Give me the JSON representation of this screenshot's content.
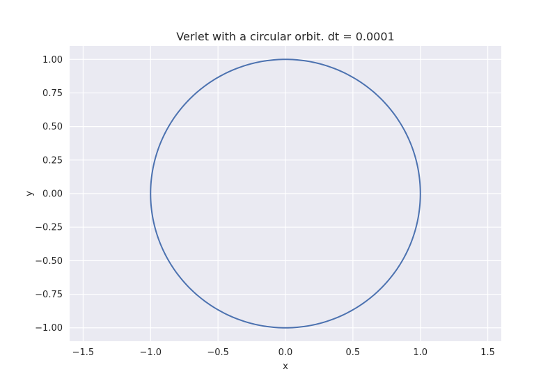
{
  "chart_data": {
    "type": "line",
    "title": "Verlet with a circular orbit. dt = 0.0001",
    "xlabel": "x",
    "ylabel": "y",
    "xlim": [
      -1.6,
      1.6
    ],
    "ylim": [
      -1.1,
      1.1
    ],
    "xticks": [
      -1.5,
      -1.0,
      -0.5,
      0.0,
      0.5,
      1.0,
      1.5
    ],
    "xtick_labels": [
      "−1.5",
      "−1.0",
      "−0.5",
      "0.0",
      "0.5",
      "1.0",
      "1.5"
    ],
    "yticks": [
      1.0,
      0.75,
      0.5,
      0.25,
      0.0,
      -0.25,
      -0.5,
      -0.75,
      -1.0
    ],
    "ytick_labels": [
      "1.00",
      "0.75",
      "0.50",
      "0.25",
      "0.00",
      "−0.25",
      "−0.50",
      "−0.75",
      "−1.00"
    ],
    "grid": true,
    "series": [
      {
        "color": "#4c72b0",
        "curve": "circle",
        "center": [
          0.0,
          0.0
        ],
        "radius": 1.0,
        "x": [
          1.0,
          0.866,
          0.5,
          0.0,
          -0.5,
          -0.866,
          -1.0,
          -0.866,
          -0.5,
          0.0,
          0.5,
          0.866,
          1.0
        ],
        "y": [
          0.0,
          0.5,
          0.866,
          1.0,
          0.866,
          0.5,
          0.0,
          -0.5,
          -0.866,
          -1.0,
          -0.866,
          -0.5,
          0.0
        ]
      }
    ]
  },
  "colors": {
    "background": "#eaeaf2",
    "grid": "#ffffff",
    "line": "#4c72b0",
    "text": "#262626"
  }
}
